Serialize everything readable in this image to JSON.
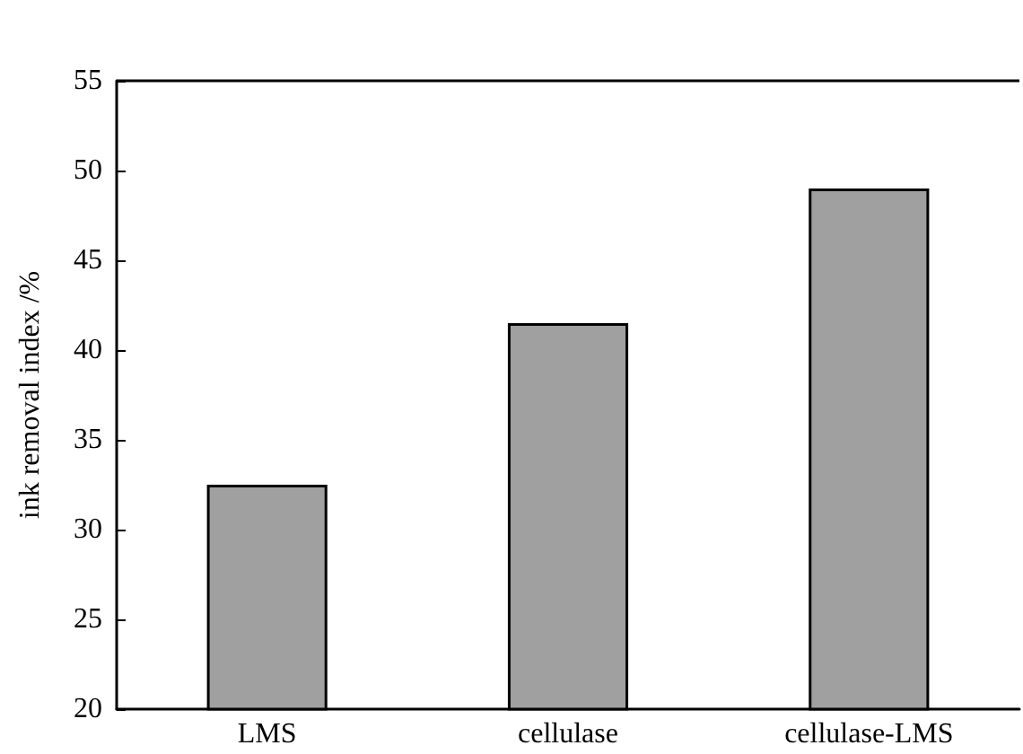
{
  "chart_data": {
    "type": "bar",
    "ylabel": "ink removal index /%",
    "categories": [
      "LMS",
      "cellulase",
      "cellulase-LMS"
    ],
    "values": [
      32.5,
      41.5,
      49
    ],
    "color": "#a0a0a0",
    "ylim": [
      20,
      55
    ],
    "yticks": [
      20,
      25,
      30,
      35,
      40,
      45,
      50,
      55
    ],
    "grid": false
  }
}
